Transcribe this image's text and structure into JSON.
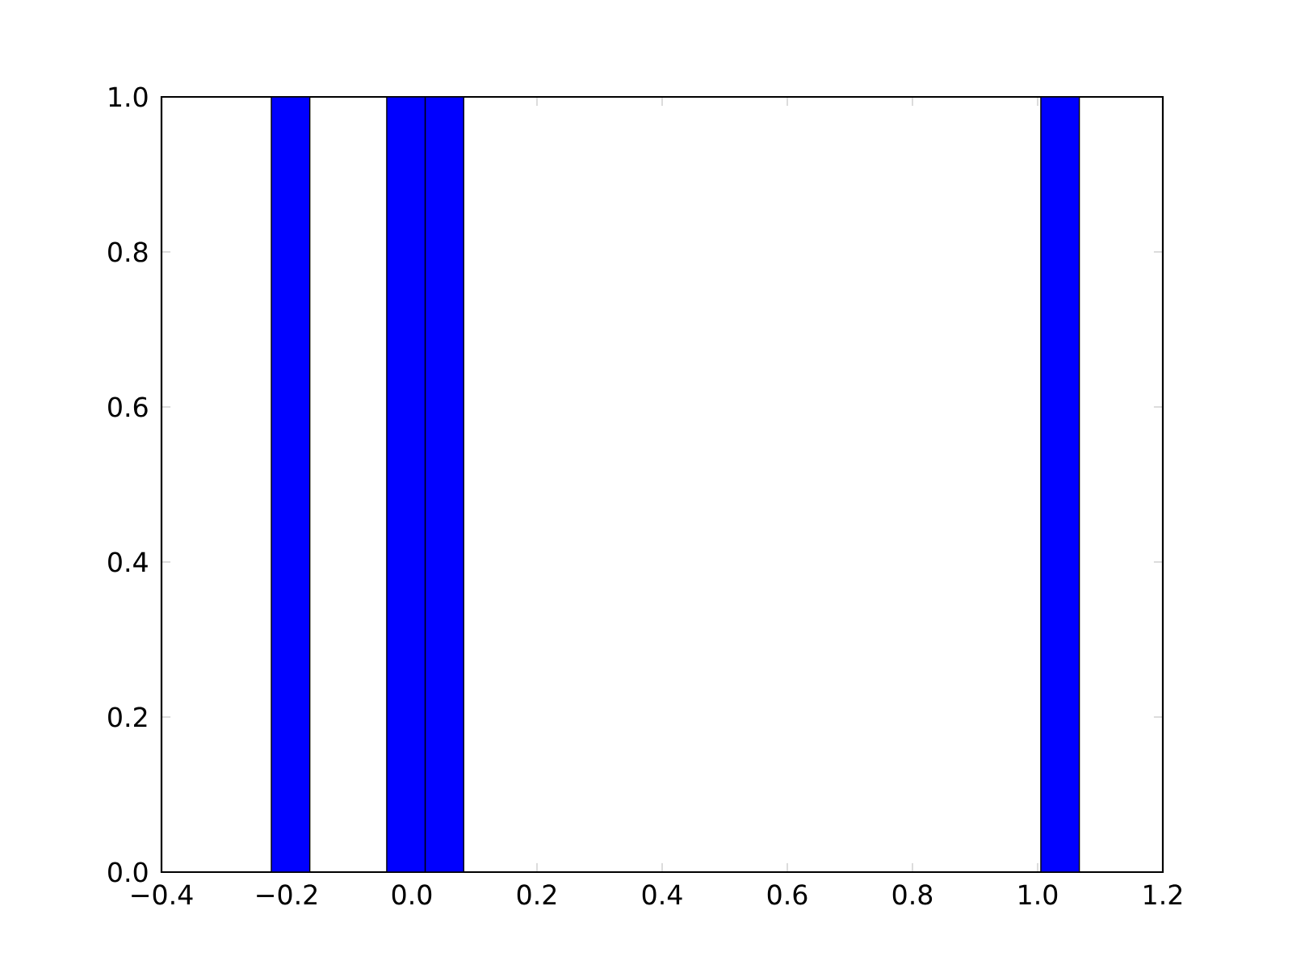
{
  "chart_data": {
    "type": "histogram",
    "bins": [
      -0.2245,
      -0.163,
      -0.1015,
      -0.0401,
      0.0214,
      0.0829,
      0.1444,
      0.2059,
      0.2674,
      0.3288,
      0.3903,
      0.4518,
      0.5133,
      0.5747,
      0.6362,
      0.6977,
      0.7592,
      0.8207,
      0.8821,
      0.9436,
      1.0051,
      1.0666
    ],
    "values": [
      1,
      0,
      0,
      1,
      1,
      0,
      0,
      0,
      0,
      0,
      0,
      0,
      0,
      0,
      0,
      0,
      0,
      0,
      0,
      0,
      1
    ],
    "color": "#0000ff",
    "xlim": [
      -0.4,
      1.2
    ],
    "ylim": [
      0,
      1
    ],
    "xticks": [
      {
        "value": -0.4,
        "label": "−0.4"
      },
      {
        "value": -0.2,
        "label": "−0.2"
      },
      {
        "value": 0,
        "label": "0.0"
      },
      {
        "value": 0.2,
        "label": "0.2"
      },
      {
        "value": 0.4,
        "label": "0.4"
      },
      {
        "value": 0.6,
        "label": "0.6"
      },
      {
        "value": 0.8,
        "label": "0.8"
      },
      {
        "value": 1.0,
        "label": "1.0"
      },
      {
        "value": 1.2,
        "label": "1.2"
      }
    ],
    "yticks": [
      {
        "value": 0,
        "label": "0.0"
      },
      {
        "value": 0.2,
        "label": "0.2"
      },
      {
        "value": 0.4,
        "label": "0.4"
      },
      {
        "value": 0.6,
        "label": "0.6"
      },
      {
        "value": 0.8,
        "label": "0.8"
      },
      {
        "value": 1.0,
        "label": "1.0"
      }
    ]
  }
}
